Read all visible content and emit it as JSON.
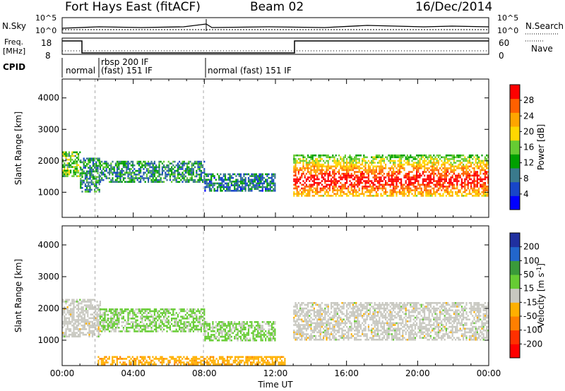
{
  "header": {
    "radar": "Fort Hays East (fitACF)",
    "beam": "Beam 02",
    "date": "16/Dec/2014"
  },
  "sky_panel": {
    "left_label": "N.Sky",
    "y_ticks": [
      "10^5",
      "10^0"
    ],
    "right_ticks": [
      "10^5",
      "10^0"
    ],
    "right_label": "N.Search"
  },
  "freq_panel": {
    "left_label_line1": "Freq.",
    "left_label_line2": "[MHz]",
    "y_ticks": [
      "18",
      "8"
    ],
    "right_ticks": [
      "60",
      "0"
    ],
    "right_label": "Nave"
  },
  "cpid": {
    "label": "CPID",
    "segments": [
      {
        "label": "normal",
        "start_hour": 0.0,
        "end_hour": 1.85
      },
      {
        "label": "rbsp 200 IF",
        "label2": "(fast) 151 IF",
        "start_hour": 1.85,
        "end_hour": 7.95
      },
      {
        "label": "normal (fast) 151 IF",
        "start_hour": 7.95,
        "end_hour": 24.0
      }
    ]
  },
  "power_colorbar": {
    "label": "Power [dB]",
    "ticks": [
      "28",
      "24",
      "20",
      "16",
      "12",
      "8",
      "4"
    ],
    "colors": [
      "#0000ff",
      "#1846c8",
      "#3a7a8c",
      "#00a000",
      "#66cc33",
      "#ffd700",
      "#ffa500",
      "#ff6000",
      "#ff0000"
    ]
  },
  "velocity_colorbar": {
    "label": "Velocity [m s",
    "label_sup": "-1",
    "label_end": "]",
    "ticks": [
      "200",
      "100",
      "50",
      "15",
      "-15",
      "-50",
      "-100",
      "-200"
    ],
    "colors": [
      "#2030a0",
      "#2266cc",
      "#3a9a3a",
      "#66cc33",
      "#c8c8c0",
      "#ffb000",
      "#ff7f00",
      "#ff3000",
      "#ff0000"
    ]
  },
  "chart_data": [
    {
      "type": "heatmap",
      "title": "Power",
      "ylabel": "Slant Range [km]",
      "ylim": [
        200,
        4600
      ],
      "xlim": [
        0,
        24
      ],
      "y_ticks": [
        1000,
        2000,
        3000,
        4000
      ],
      "colorbar_label": "Power [dB]",
      "clim": [
        0,
        30
      ],
      "bands": [
        {
          "x_start": 0.0,
          "x_end": 1.0,
          "y_low": 1500,
          "y_high": 2300,
          "value": 14
        },
        {
          "x_start": 1.0,
          "x_end": 2.1,
          "y_low": 1000,
          "y_high": 2100,
          "value": 10
        },
        {
          "x_start": 2.1,
          "x_end": 8.0,
          "y_low": 1300,
          "y_high": 2000,
          "value": 10
        },
        {
          "x_start": 8.0,
          "x_end": 12.0,
          "y_low": 1050,
          "y_high": 1600,
          "value": 8
        },
        {
          "x_start": 13.0,
          "x_end": 24.0,
          "y_low": 900,
          "y_high": 2200,
          "value": 20
        }
      ]
    },
    {
      "type": "heatmap",
      "title": "Velocity",
      "xlabel": "Time UT",
      "ylabel": "Slant Range [km]",
      "ylim": [
        200,
        4600
      ],
      "xlim": [
        0,
        24
      ],
      "y_ticks": [
        1000,
        2000,
        3000,
        4000
      ],
      "x_ticks": [
        "00:00",
        "04:00",
        "08:00",
        "12:00",
        "16:00",
        "20:00",
        "00:00"
      ],
      "colorbar_label": "Velocity [m s-1]",
      "clim": [
        -250,
        250
      ],
      "bands": [
        {
          "x_start": 0.0,
          "x_end": 2.1,
          "y_low": 1100,
          "y_high": 2300,
          "value": 0
        },
        {
          "x_start": 2.1,
          "x_end": 8.0,
          "y_low": 1300,
          "y_high": 2000,
          "value": 40
        },
        {
          "x_start": 8.0,
          "x_end": 12.0,
          "y_low": 1000,
          "y_high": 1600,
          "value": 40
        },
        {
          "x_start": 13.0,
          "x_end": 24.0,
          "y_low": 1000,
          "y_high": 2200,
          "value": 0
        },
        {
          "x_start": 2.0,
          "x_end": 12.5,
          "y_low": 250,
          "y_high": 500,
          "value": -60
        }
      ]
    }
  ]
}
